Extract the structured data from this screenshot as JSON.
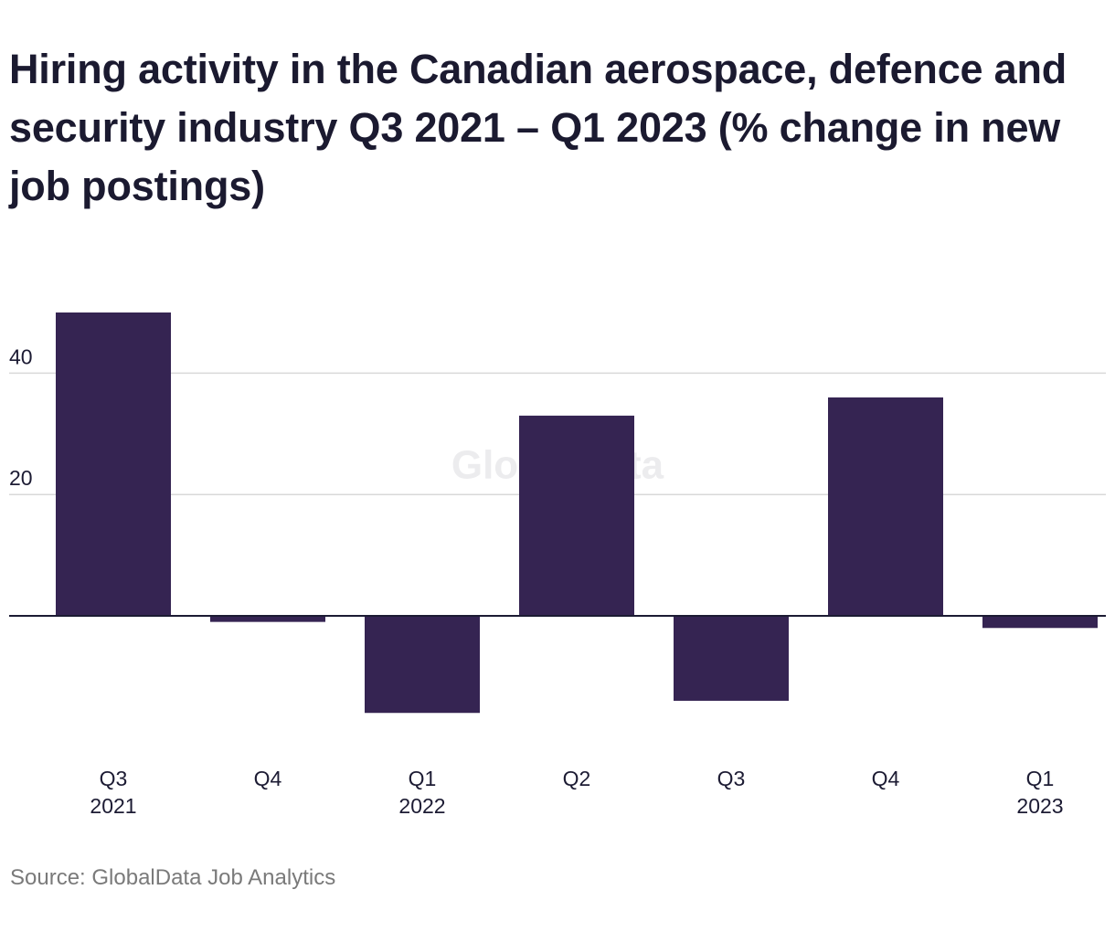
{
  "title": "Hiring activity in the Canadian aerospace, defence and security industry Q3 2021 – Q1 2023 (% change in new job postings)",
  "source": "Source: GlobalData Job Analytics",
  "watermark": "GlobalData",
  "colors": {
    "bar": "#352452",
    "grid": "#d9d9d9",
    "baseline": "#1c1b33",
    "text": "#1c1b33",
    "watermark": "#ececee"
  },
  "chart_data": {
    "type": "bar",
    "categories": [
      [
        "Q3",
        "2021"
      ],
      [
        "Q4",
        ""
      ],
      [
        "Q1",
        "2022"
      ],
      [
        "Q2",
        ""
      ],
      [
        "Q3",
        ""
      ],
      [
        "Q4",
        ""
      ],
      [
        "Q1",
        "2023"
      ]
    ],
    "values": [
      50,
      -1,
      -16,
      33,
      -14,
      36,
      -2
    ],
    "yticks": [
      20,
      40
    ],
    "ylim": [
      -20,
      52
    ],
    "grid": true,
    "xlabel": "",
    "ylabel": ""
  }
}
